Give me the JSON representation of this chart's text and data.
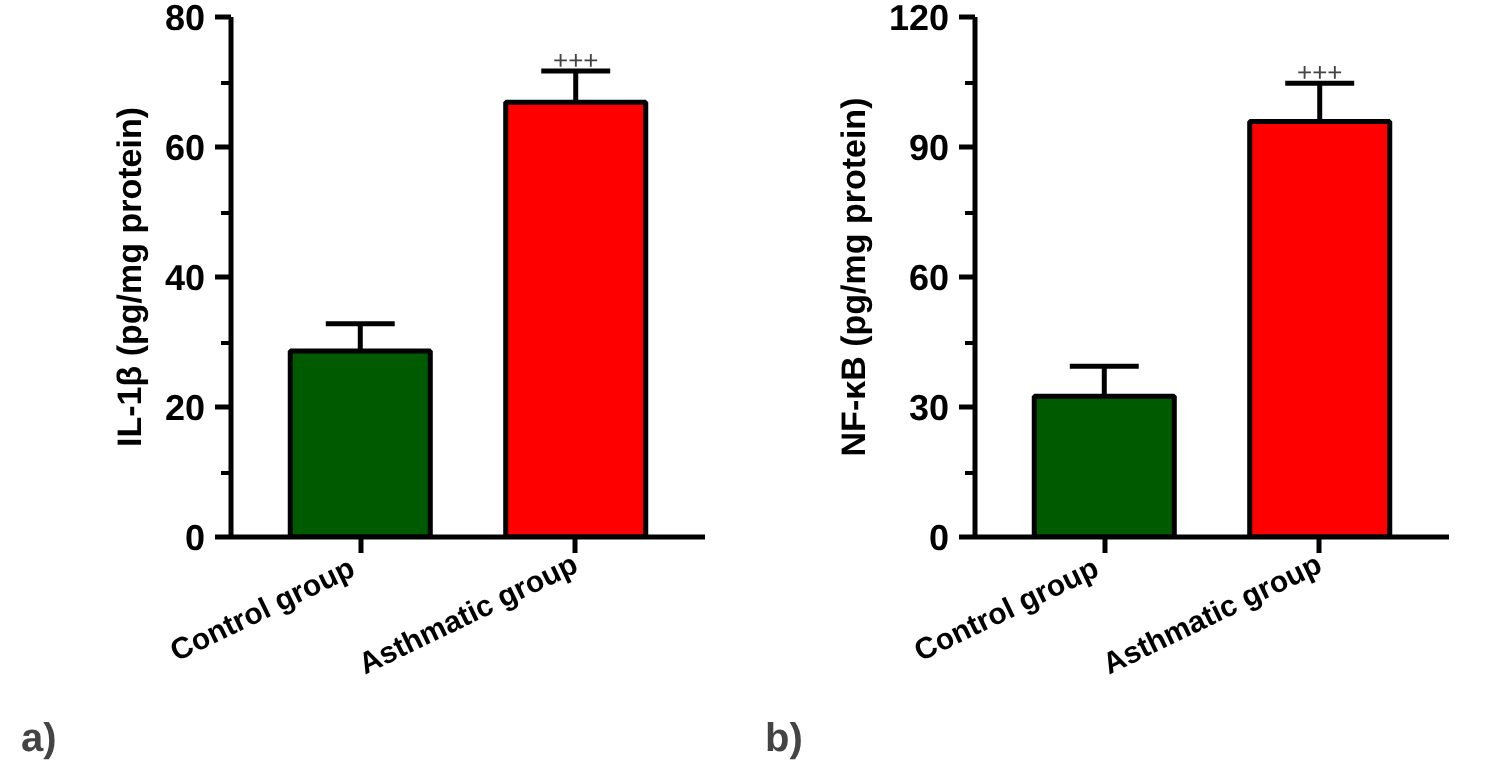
{
  "chart_data": [
    {
      "type": "bar",
      "categories": [
        "Control  group",
        "Asthmatic group"
      ],
      "ylabel": "IL-1β (pg/mg protein)",
      "colors": [
        "#005a00",
        "#ff0000"
      ],
      "values": [
        28.6,
        66.9
      ],
      "errors": [
        [
          28.6,
          32.8
        ],
        [
          66.9,
          71.7
        ]
      ],
      "ylim": [
        0,
        80
      ],
      "yticks": [
        0,
        20,
        40,
        60,
        80
      ],
      "grid": false,
      "annotations": [
        {
          "text": "+++",
          "x": "Asthmatic group",
          "y": 71.7
        },
        "a)"
      ]
    },
    {
      "type": "bar",
      "categories": [
        "Control  group",
        "Asthmatic group"
      ],
      "ylabel": "NF-κB (pg/mg protein)",
      "colors": [
        "#005a00",
        "#ff0000"
      ],
      "values": [
        32.5,
        95.9
      ],
      "errors": [
        [
          32.5,
          39.4
        ],
        [
          95.9,
          104.7
        ]
      ],
      "ylim": [
        0,
        120
      ],
      "yticks": [
        0,
        30,
        60,
        90,
        120
      ],
      "grid": false,
      "annotations": [
        {
          "text": "+++",
          "x": "Asthmatic group",
          "y": 104.7
        },
        "b)"
      ]
    }
  ]
}
